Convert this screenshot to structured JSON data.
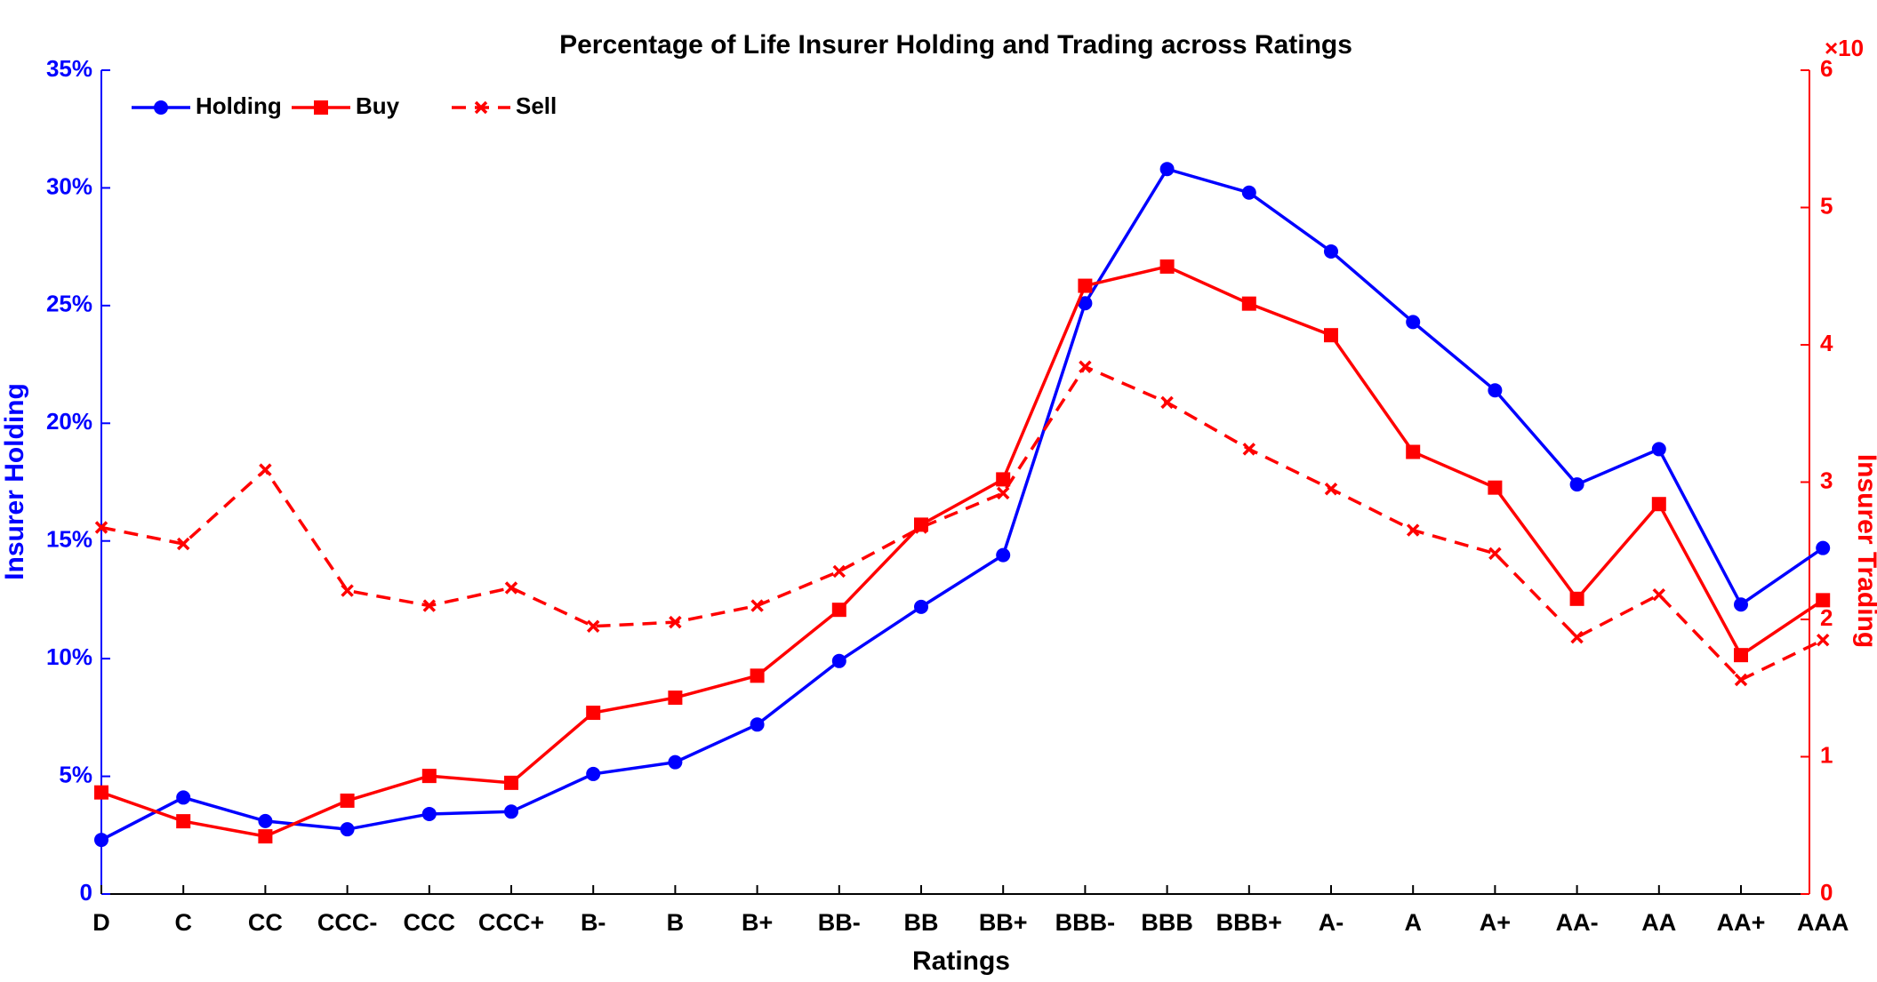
{
  "chart_data": {
    "type": "line",
    "title": "Percentage of Life Insurer Holding and Trading across Ratings",
    "xlabel": "Ratings",
    "ylabel": "Insurer Holding",
    "y2label": "Insurer Trading",
    "y2_multiplier": "×10",
    "categories": [
      "D",
      "C",
      "CC",
      "CCC-",
      "CCC",
      "CCC+",
      "B-",
      "B",
      "B+",
      "BB-",
      "BB",
      "BB+",
      "BBB-",
      "BBB",
      "BBB+",
      "A-",
      "A",
      "A+",
      "AA-",
      "AA",
      "AA+",
      "AAA"
    ],
    "series": [
      {
        "name": "Holding",
        "color": "#0000ff",
        "marker": "circle",
        "dash": false,
        "axis": "y",
        "values": [
          2.3,
          4.1,
          3.1,
          2.75,
          3.4,
          3.5,
          5.1,
          5.6,
          7.2,
          9.9,
          12.2,
          14.4,
          25.1,
          30.8,
          29.8,
          27.3,
          24.3,
          21.4,
          17.4,
          18.9,
          12.3,
          14.7
        ]
      },
      {
        "name": "Buy",
        "color": "#ff0000",
        "marker": "square",
        "dash": false,
        "axis": "y2",
        "values": [
          0.74,
          0.53,
          0.42,
          0.68,
          0.86,
          0.81,
          1.32,
          1.43,
          1.59,
          2.07,
          2.69,
          3.02,
          4.43,
          4.57,
          4.3,
          4.07,
          3.22,
          2.96,
          2.15,
          2.84,
          1.74,
          2.14
        ]
      },
      {
        "name": "Sell",
        "color": "#ff0000",
        "marker": "x",
        "dash": true,
        "axis": "y2",
        "values": [
          2.67,
          2.55,
          3.09,
          2.21,
          2.1,
          2.23,
          1.95,
          1.98,
          2.1,
          2.35,
          2.67,
          2.92,
          3.84,
          3.58,
          3.24,
          2.95,
          2.65,
          2.48,
          1.87,
          2.18,
          1.56,
          1.85
        ]
      }
    ],
    "ylim": [
      0,
      35
    ],
    "yticks": [
      0,
      {
        "value": 5,
        "label": "5%"
      },
      {
        "value": 10,
        "label": "10%"
      },
      {
        "value": 15,
        "label": "15%"
      },
      {
        "value": 20,
        "label": "20%"
      },
      {
        "value": 25,
        "label": "25%"
      },
      {
        "value": 30,
        "label": "30%"
      },
      {
        "value": 35,
        "label": "35%"
      }
    ],
    "y2lim": [
      0,
      6
    ],
    "y2ticks": [
      0,
      1,
      2,
      3,
      4,
      5,
      6
    ],
    "legend": "upper left",
    "grid": false
  }
}
